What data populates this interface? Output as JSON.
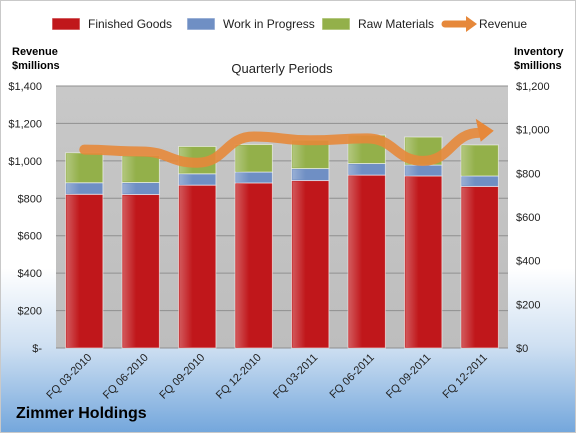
{
  "chart_data": {
    "type": "bar",
    "subtype": "stacked-bar-with-line",
    "title": "Quarterly Periods",
    "company": "Zimmer Holdings",
    "left_axis_label": [
      "Revenue",
      "$millions"
    ],
    "right_axis_label": [
      "Inventory",
      "$millions"
    ],
    "categories": [
      "FQ 03-2010",
      "FQ 06-2010",
      "FQ 09-2010",
      "FQ 12-2010",
      "FQ 03-2011",
      "FQ 06-2011",
      "FQ 09-2011",
      "FQ 12-2011"
    ],
    "left_ticks": [
      "$-",
      "$200",
      "$400",
      "$600",
      "$800",
      "$1,000",
      "$1,200",
      "$1,400"
    ],
    "right_ticks": [
      "$0",
      "$200",
      "$400",
      "$600",
      "$800",
      "$1,000",
      "$1,200"
    ],
    "ylim_left": [
      0,
      1400
    ],
    "ylim_right": [
      0,
      1200
    ],
    "legend_position": "top",
    "grid": true,
    "series": [
      {
        "name": "Finished Goods",
        "axis": "right",
        "kind": "bar",
        "color": "#c0171b",
        "values": [
          704,
          703,
          746,
          756,
          767,
          792,
          788,
          740
        ]
      },
      {
        "name": "Work in Progress",
        "axis": "right",
        "kind": "bar",
        "color": "#6f8fc4",
        "values": [
          53,
          55,
          52,
          50,
          55,
          53,
          50,
          48
        ]
      },
      {
        "name": "Raw Materials",
        "axis": "right",
        "kind": "bar",
        "color": "#93b04a",
        "values": [
          137,
          124,
          125,
          126,
          130,
          130,
          128,
          142
        ]
      },
      {
        "name": "Revenue",
        "axis": "left",
        "kind": "line",
        "color": "#e6883a",
        "values": [
          1060,
          1050,
          990,
          1130,
          1110,
          1120,
          1000,
          1150
        ]
      }
    ]
  }
}
